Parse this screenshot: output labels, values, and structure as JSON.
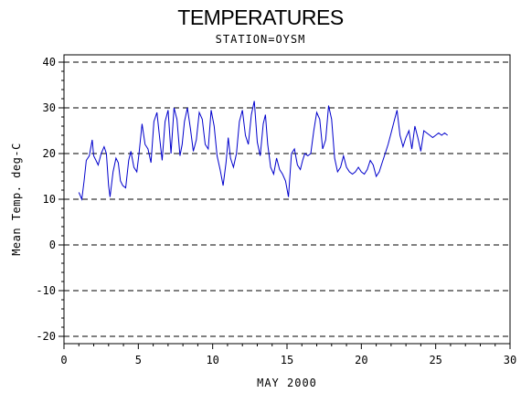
{
  "chart_data": {
    "type": "line",
    "title": "TEMPERATURES",
    "subtitle": "STATION=OYSM",
    "xlabel": "MAY 2000",
    "ylabel": "Mean Temp. deg-C",
    "xlim": [
      0,
      30
    ],
    "ylim": [
      -20,
      40
    ],
    "xticks": [
      0,
      5,
      10,
      15,
      20,
      25,
      30
    ],
    "yticks": [
      -20,
      -10,
      0,
      10,
      20,
      30,
      40
    ],
    "grid": "horizontal dashed",
    "series": [
      {
        "color": "#0000cc",
        "x": [
          1.0,
          1.2,
          1.35,
          1.5,
          1.7,
          1.9,
          2.0,
          2.15,
          2.3,
          2.5,
          2.7,
          2.85,
          3.0,
          3.1,
          3.3,
          3.5,
          3.65,
          3.8,
          3.95,
          4.15,
          4.35,
          4.5,
          4.7,
          4.9,
          5.05,
          5.25,
          5.45,
          5.65,
          5.85,
          6.05,
          6.25,
          6.45,
          6.6,
          6.8,
          7.0,
          7.2,
          7.4,
          7.6,
          7.8,
          7.95,
          8.1,
          8.3,
          8.5,
          8.7,
          8.9,
          9.1,
          9.3,
          9.5,
          9.7,
          9.9,
          10.1,
          10.3,
          10.5,
          10.7,
          10.9,
          11.05,
          11.2,
          11.4,
          11.6,
          11.8,
          12.0,
          12.2,
          12.4,
          12.6,
          12.8,
          13.0,
          13.2,
          13.4,
          13.55,
          13.7,
          13.9,
          14.1,
          14.3,
          14.5,
          14.7,
          14.9,
          15.1,
          15.3,
          15.5,
          15.7,
          15.9,
          16.05,
          16.2,
          16.4,
          16.6,
          16.8,
          17.0,
          17.2,
          17.4,
          17.6,
          17.8,
          18.0,
          18.2,
          18.4,
          18.6,
          18.8,
          19.0,
          19.2,
          19.4,
          19.6,
          19.8,
          20.0,
          20.2,
          20.4,
          20.6,
          20.8,
          21.0,
          21.2,
          21.4,
          21.6,
          21.8,
          22.0,
          22.2,
          22.4,
          22.6,
          22.8,
          23.0,
          23.2,
          23.4,
          23.6,
          23.8,
          24.0,
          24.2,
          24.4,
          24.6,
          24.8,
          25.0,
          25.2,
          25.4,
          25.6,
          25.8
        ],
        "y": [
          11.5,
          10.0,
          14.0,
          18.5,
          19.5,
          23.0,
          19.5,
          18.5,
          17.5,
          20.0,
          21.5,
          20.0,
          13.0,
          10.5,
          16.0,
          19.0,
          18.0,
          14.0,
          13.0,
          12.5,
          18.5,
          20.5,
          17.0,
          16.0,
          20.0,
          26.5,
          22.0,
          21.0,
          18.0,
          27.0,
          29.0,
          23.0,
          18.5,
          27.0,
          29.5,
          20.0,
          30.0,
          27.5,
          19.5,
          22.0,
          27.0,
          30.0,
          25.5,
          20.5,
          23.0,
          29.0,
          27.5,
          22.0,
          21.0,
          29.5,
          26.0,
          19.5,
          16.5,
          13.0,
          18.0,
          23.5,
          19.0,
          17.0,
          20.0,
          27.0,
          29.5,
          24.0,
          22.0,
          28.5,
          31.5,
          22.5,
          19.5,
          26.5,
          28.5,
          22.0,
          17.0,
          15.5,
          19.0,
          16.5,
          15.5,
          14.0,
          10.5,
          20.0,
          21.0,
          17.5,
          16.5,
          18.5,
          20.0,
          19.5,
          20.0,
          25.0,
          29.0,
          27.5,
          21.0,
          23.0,
          30.5,
          27.5,
          19.0,
          16.0,
          17.0,
          19.5,
          17.0,
          16.0,
          15.5,
          16.0,
          17.0,
          16.0,
          15.5,
          16.5,
          18.5,
          17.5,
          15.0,
          16.0,
          18.0,
          20.0,
          22.0,
          24.5,
          27.0,
          29.5,
          24.0,
          21.5,
          23.5,
          25.0,
          21.0,
          26.0,
          23.5,
          20.5,
          25.0,
          24.5,
          24.0,
          23.5,
          24.0,
          24.5,
          24.0,
          24.5,
          24.0
        ]
      }
    ]
  }
}
